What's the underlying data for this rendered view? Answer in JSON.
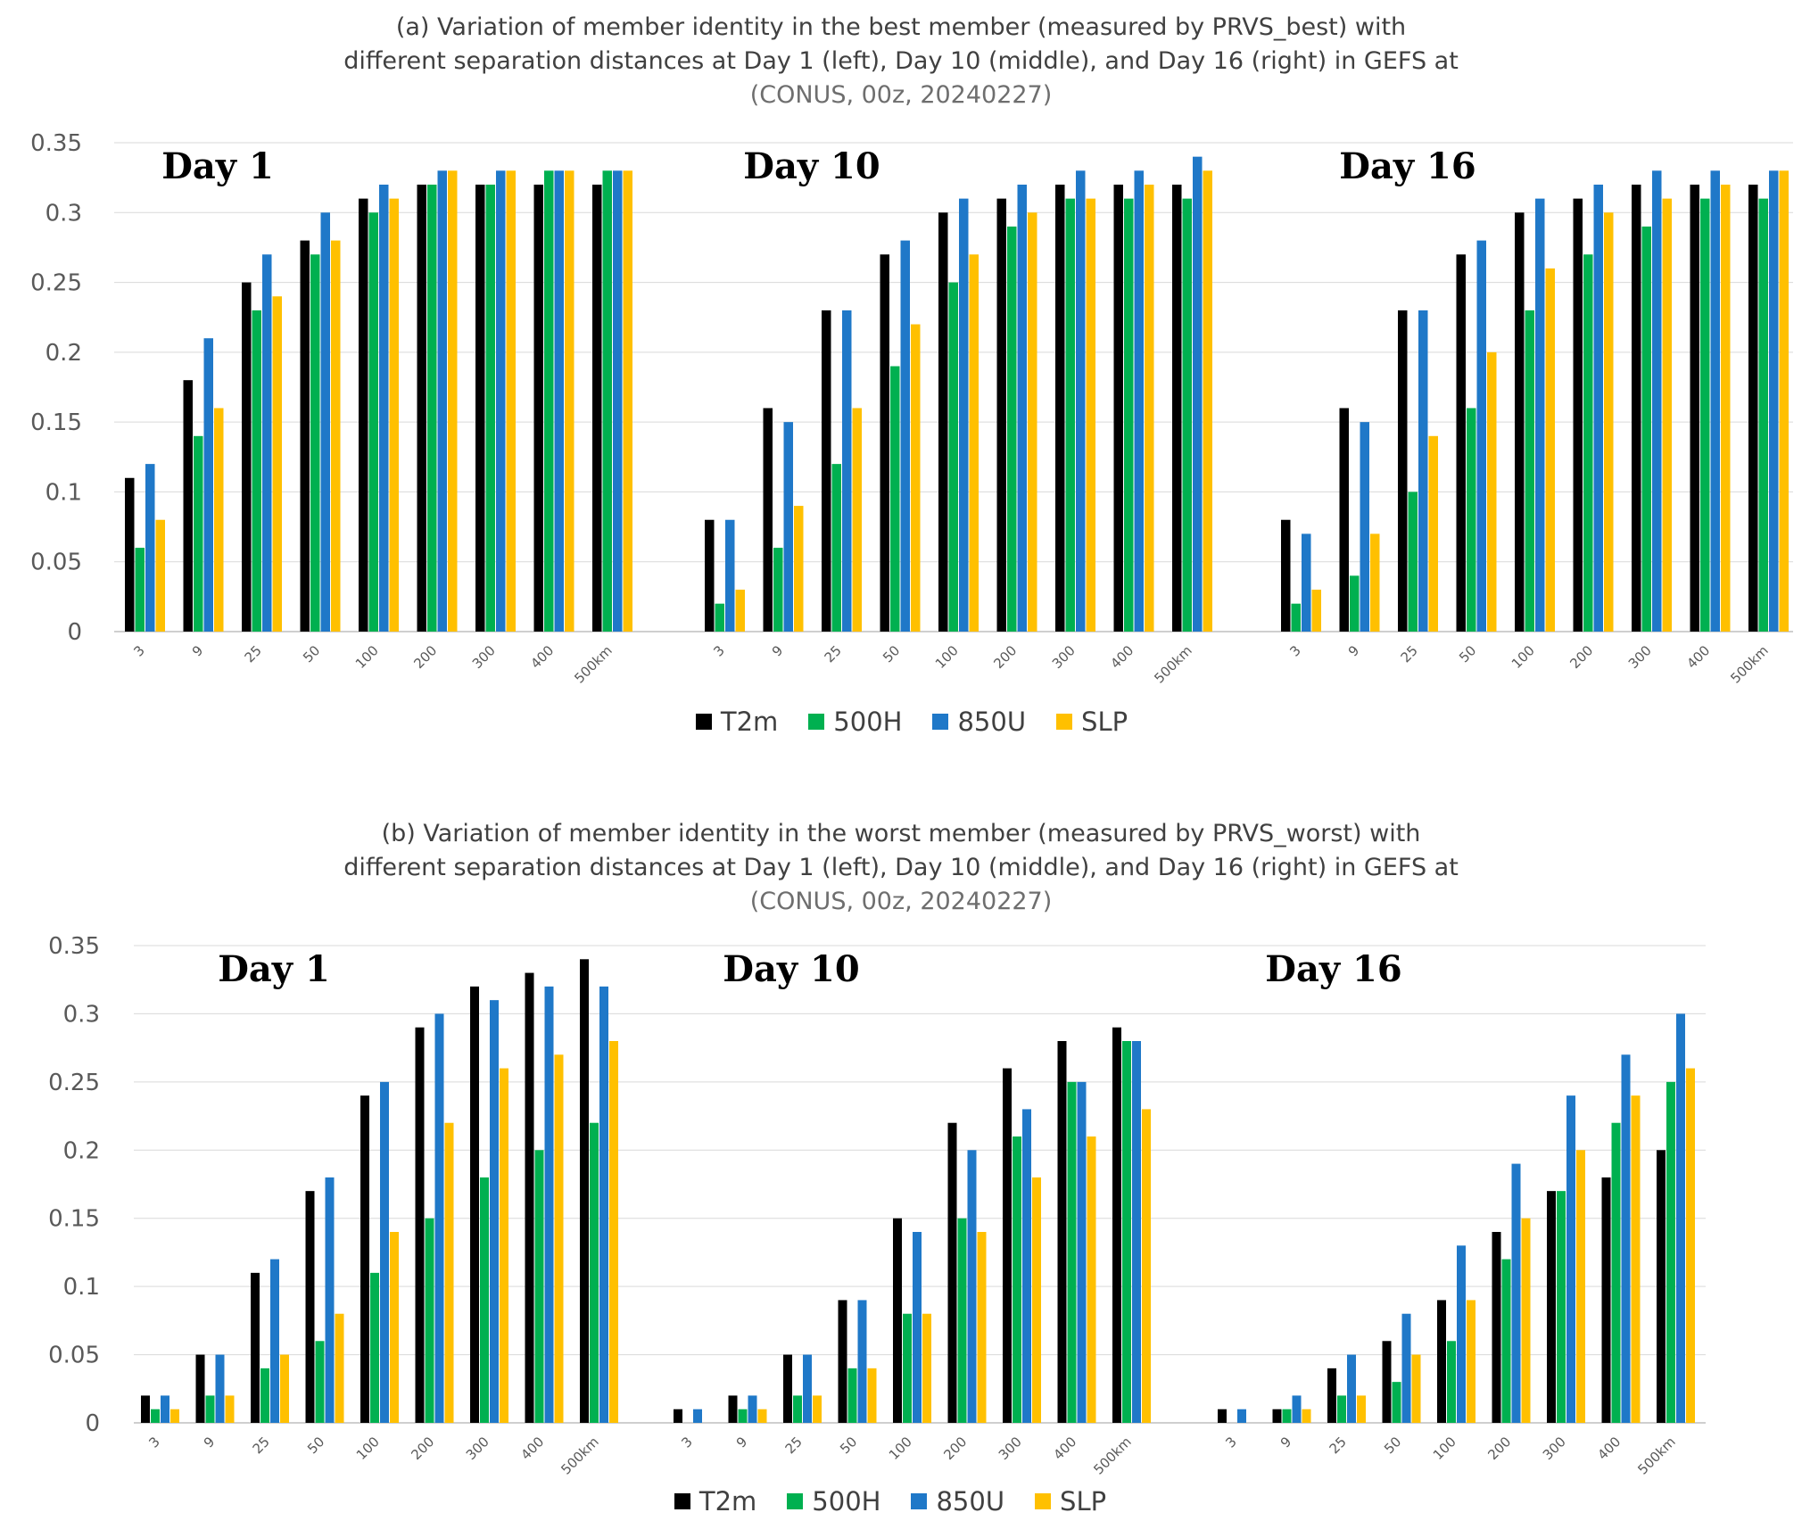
{
  "colors": {
    "T2m": "#000000",
    "500H": "#00b050",
    "850U": "#1f78c8",
    "SLP": "#ffc000",
    "grid": "#d9d9d9",
    "axis": "#bfbfbf",
    "tick_text": "#595959"
  },
  "legend": [
    "T2m",
    "500H",
    "850U",
    "SLP"
  ],
  "panel_a": {
    "title_line1": "(a) Variation of member identity in the best member (measured by PRVS_best) with",
    "title_line2": "different separation distances at Day 1 (left), Day 10 (middle), and Day 16 (right) in GEFS at",
    "title_line3": "(CONUS, 00z, 20240227)"
  },
  "panel_b": {
    "title_line1": "(b) Variation of member identity in the worst member (measured by PRVS_worst) with",
    "title_line2": "different separation distances at Day 1 (left), Day 10 (middle), and Day 16 (right) in GEFS at",
    "title_line3": "(CONUS, 00z, 20240227)"
  },
  "chart_data": [
    {
      "type": "bar",
      "title": "(a) Variation of member identity in the best member (measured by PRVS_best) with different separation distances at Day 1 (left), Day 10 (middle), and Day 16 (right) in GEFS at (CONUS, 00z, 20240227)",
      "ylim": [
        0,
        0.35
      ],
      "yticks": [
        "0",
        "0.05",
        "0.1",
        "0.15",
        "0.2",
        "0.25",
        "0.3",
        "0.35"
      ],
      "series_names": [
        "T2m",
        "500H",
        "850U",
        "SLP"
      ],
      "groups": [
        {
          "label": "Day 1",
          "categories": [
            "3",
            "9",
            "25",
            "50",
            "100",
            "200",
            "300",
            "400",
            "500km"
          ],
          "series": [
            {
              "name": "T2m",
              "values": [
                0.11,
                0.18,
                0.25,
                0.28,
                0.31,
                0.32,
                0.32,
                0.32,
                0.32
              ]
            },
            {
              "name": "500H",
              "values": [
                0.06,
                0.14,
                0.23,
                0.27,
                0.3,
                0.32,
                0.32,
                0.33,
                0.33
              ]
            },
            {
              "name": "850U",
              "values": [
                0.12,
                0.21,
                0.27,
                0.3,
                0.32,
                0.33,
                0.33,
                0.33,
                0.33
              ]
            },
            {
              "name": "SLP",
              "values": [
                0.08,
                0.16,
                0.24,
                0.28,
                0.31,
                0.33,
                0.33,
                0.33,
                0.33
              ]
            }
          ]
        },
        {
          "label": "Day 10",
          "categories": [
            "3",
            "9",
            "25",
            "50",
            "100",
            "200",
            "300",
            "400",
            "500km"
          ],
          "series": [
            {
              "name": "T2m",
              "values": [
                0.08,
                0.16,
                0.23,
                0.27,
                0.3,
                0.31,
                0.32,
                0.32,
                0.32
              ]
            },
            {
              "name": "500H",
              "values": [
                0.02,
                0.06,
                0.12,
                0.19,
                0.25,
                0.29,
                0.31,
                0.31,
                0.31
              ]
            },
            {
              "name": "850U",
              "values": [
                0.08,
                0.15,
                0.23,
                0.28,
                0.31,
                0.32,
                0.33,
                0.33,
                0.34
              ]
            },
            {
              "name": "SLP",
              "values": [
                0.03,
                0.09,
                0.16,
                0.22,
                0.27,
                0.3,
                0.31,
                0.32,
                0.33
              ]
            }
          ]
        },
        {
          "label": "Day 16",
          "categories": [
            "3",
            "9",
            "25",
            "50",
            "100",
            "200",
            "300",
            "400",
            "500km"
          ],
          "series": [
            {
              "name": "T2m",
              "values": [
                0.08,
                0.16,
                0.23,
                0.27,
                0.3,
                0.31,
                0.32,
                0.32,
                0.32
              ]
            },
            {
              "name": "500H",
              "values": [
                0.02,
                0.04,
                0.1,
                0.16,
                0.23,
                0.27,
                0.29,
                0.31,
                0.31
              ]
            },
            {
              "name": "850U",
              "values": [
                0.07,
                0.15,
                0.23,
                0.28,
                0.31,
                0.32,
                0.33,
                0.33,
                0.33
              ]
            },
            {
              "name": "SLP",
              "values": [
                0.03,
                0.07,
                0.14,
                0.2,
                0.26,
                0.3,
                0.31,
                0.32,
                0.33
              ]
            }
          ]
        }
      ]
    },
    {
      "type": "bar",
      "title": "(b) Variation of member identity in the worst member (measured by PRVS_worst) with different separation distances at Day 1 (left), Day 10 (middle), and Day 16 (right) in GEFS at (CONUS, 00z, 20240227)",
      "ylim": [
        0,
        0.35
      ],
      "yticks": [
        "0",
        "0.05",
        "0.1",
        "0.15",
        "0.2",
        "0.25",
        "0.3",
        "0.35"
      ],
      "series_names": [
        "T2m",
        "500H",
        "850U",
        "SLP"
      ],
      "groups": [
        {
          "label": "Day 1",
          "categories": [
            "3",
            "9",
            "25",
            "50",
            "100",
            "200",
            "300",
            "400",
            "500km"
          ],
          "series": [
            {
              "name": "T2m",
              "values": [
                0.02,
                0.05,
                0.11,
                0.17,
                0.24,
                0.29,
                0.32,
                0.33,
                0.34
              ]
            },
            {
              "name": "500H",
              "values": [
                0.01,
                0.02,
                0.04,
                0.06,
                0.11,
                0.15,
                0.18,
                0.2,
                0.22
              ]
            },
            {
              "name": "850U",
              "values": [
                0.02,
                0.05,
                0.12,
                0.18,
                0.25,
                0.3,
                0.31,
                0.32,
                0.32
              ]
            },
            {
              "name": "SLP",
              "values": [
                0.01,
                0.02,
                0.05,
                0.08,
                0.14,
                0.22,
                0.26,
                0.27,
                0.28
              ]
            }
          ]
        },
        {
          "label": "Day 10",
          "categories": [
            "3",
            "9",
            "25",
            "50",
            "100",
            "200",
            "300",
            "400",
            "500km"
          ],
          "series": [
            {
              "name": "T2m",
              "values": [
                0.01,
                0.02,
                0.05,
                0.09,
                0.15,
                0.22,
                0.26,
                0.28,
                0.29
              ]
            },
            {
              "name": "500H",
              "values": [
                0.0,
                0.01,
                0.02,
                0.04,
                0.08,
                0.15,
                0.21,
                0.25,
                0.28
              ]
            },
            {
              "name": "850U",
              "values": [
                0.01,
                0.02,
                0.05,
                0.09,
                0.14,
                0.2,
                0.23,
                0.25,
                0.28
              ]
            },
            {
              "name": "SLP",
              "values": [
                0.0,
                0.01,
                0.02,
                0.04,
                0.08,
                0.14,
                0.18,
                0.21,
                0.23
              ]
            }
          ]
        },
        {
          "label": "Day 16",
          "categories": [
            "3",
            "9",
            "25",
            "50",
            "100",
            "200",
            "300",
            "400",
            "500km"
          ],
          "series": [
            {
              "name": "T2m",
              "values": [
                0.01,
                0.01,
                0.04,
                0.06,
                0.09,
                0.14,
                0.17,
                0.18,
                0.2
              ]
            },
            {
              "name": "500H",
              "values": [
                0.0,
                0.01,
                0.02,
                0.03,
                0.06,
                0.12,
                0.17,
                0.22,
                0.25
              ]
            },
            {
              "name": "850U",
              "values": [
                0.01,
                0.02,
                0.05,
                0.08,
                0.13,
                0.19,
                0.24,
                0.27,
                0.3
              ]
            },
            {
              "name": "SLP",
              "values": [
                0.0,
                0.01,
                0.02,
                0.05,
                0.09,
                0.15,
                0.2,
                0.24,
                0.26
              ]
            }
          ]
        }
      ]
    }
  ]
}
